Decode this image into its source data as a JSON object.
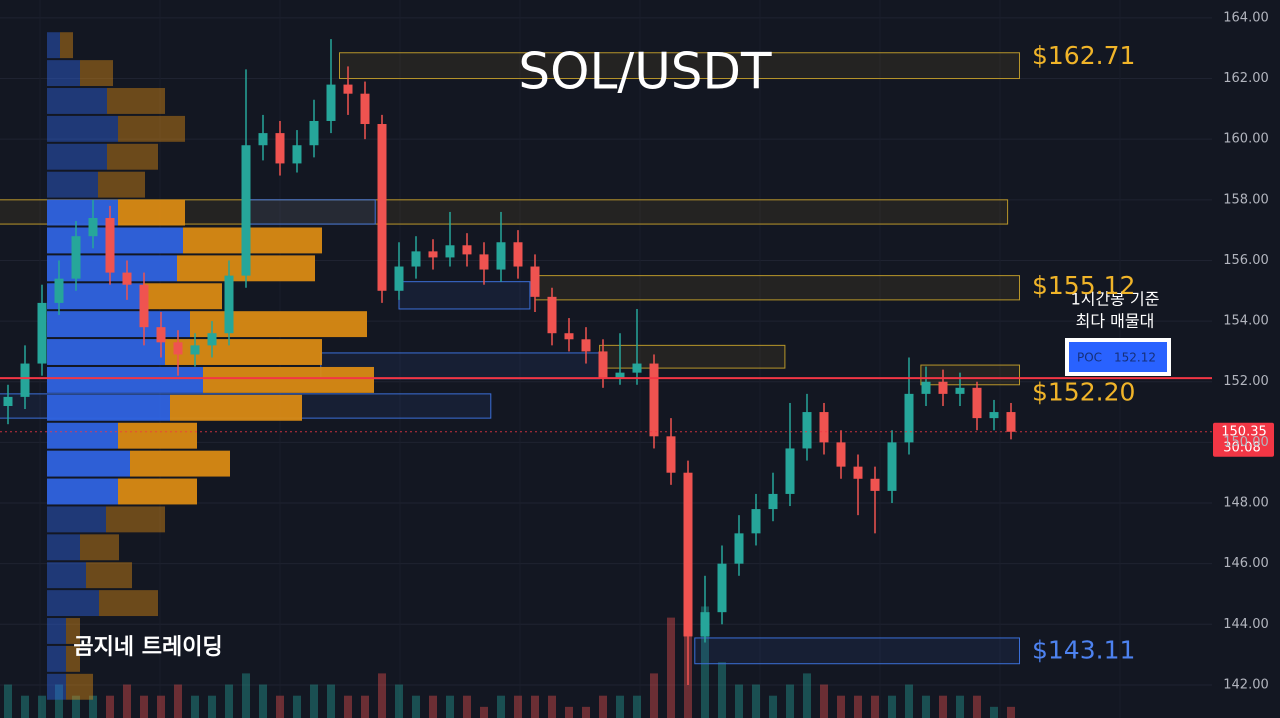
{
  "chart_data": {
    "type": "candlestick",
    "title": "SOL/USDT",
    "watermark": "곰지네 트레이딩",
    "ylim": [
      140.91,
      164.59
    ],
    "yticks": [
      {
        "value": 142,
        "label": "142.00"
      },
      {
        "value": 144,
        "label": "144.00"
      },
      {
        "value": 146,
        "label": "146.00"
      },
      {
        "value": 148,
        "label": "148.00"
      },
      {
        "value": 150,
        "label": "150.00"
      },
      {
        "value": 152,
        "label": "152.00"
      },
      {
        "value": 154,
        "label": "154.00"
      },
      {
        "value": 156,
        "label": "156.00"
      },
      {
        "value": 158,
        "label": "158.00"
      },
      {
        "value": 160,
        "label": "160.00"
      },
      {
        "value": 162,
        "label": "162.00"
      },
      {
        "value": 164,
        "label": "164.00"
      }
    ],
    "grid": true,
    "up_color": "#26a69a",
    "down_color": "#ef5350",
    "open": [
      151.2,
      151.5,
      152.6,
      154.6,
      155.4,
      156.8,
      157.4,
      155.6,
      155.2,
      153.8,
      153.3,
      152.9,
      153.2,
      153.6,
      155.5,
      159.8,
      160.2,
      159.2,
      159.8,
      160.6,
      161.8,
      161.5,
      160.5,
      155.0,
      155.8,
      156.3,
      156.1,
      156.5,
      156.2,
      155.7,
      156.6,
      155.8,
      154.8,
      153.6,
      153.4,
      153.0,
      152.1,
      152.3,
      152.6,
      150.2,
      149.0,
      143.6,
      144.4,
      146.0,
      147.0,
      147.8,
      148.3,
      149.8,
      151.0,
      150.0,
      149.2,
      148.8,
      148.4,
      150.0,
      151.6,
      152.0,
      151.6,
      151.8,
      150.8,
      151.0
    ],
    "high": [
      151.9,
      153.2,
      155.2,
      156.0,
      157.3,
      158.0,
      157.8,
      156.0,
      155.6,
      154.3,
      153.7,
      153.6,
      154.0,
      156.0,
      162.3,
      160.8,
      160.6,
      160.3,
      161.3,
      163.3,
      162.4,
      161.9,
      160.8,
      156.6,
      156.8,
      156.7,
      157.6,
      156.9,
      156.6,
      157.6,
      157.0,
      156.2,
      155.1,
      154.1,
      153.8,
      153.4,
      153.6,
      154.4,
      152.9,
      150.8,
      149.4,
      145.6,
      146.6,
      147.6,
      148.3,
      149.0,
      151.3,
      151.6,
      151.3,
      150.4,
      149.6,
      149.2,
      150.4,
      152.8,
      152.5,
      152.4,
      152.3,
      152.0,
      151.4,
      151.3
    ],
    "low": [
      150.6,
      151.1,
      152.2,
      154.2,
      155.0,
      156.4,
      155.2,
      154.7,
      153.2,
      152.8,
      152.2,
      152.5,
      152.8,
      153.2,
      155.1,
      159.3,
      158.8,
      158.9,
      159.4,
      160.2,
      160.8,
      160.0,
      154.6,
      154.7,
      155.4,
      155.7,
      155.8,
      155.8,
      155.2,
      155.3,
      155.4,
      154.3,
      153.2,
      153.0,
      152.6,
      151.8,
      151.9,
      151.9,
      149.8,
      148.6,
      142.0,
      143.4,
      144.0,
      145.6,
      146.6,
      147.4,
      147.9,
      149.4,
      149.6,
      148.8,
      147.6,
      147.0,
      148.0,
      149.6,
      151.2,
      151.2,
      151.2,
      150.4,
      150.4,
      150.1
    ],
    "close": [
      151.5,
      152.6,
      154.6,
      155.4,
      156.8,
      157.4,
      155.6,
      155.2,
      153.8,
      153.3,
      152.9,
      153.2,
      153.6,
      155.5,
      159.8,
      160.2,
      159.2,
      159.8,
      160.6,
      161.8,
      161.5,
      160.5,
      155.0,
      155.8,
      156.3,
      156.1,
      156.5,
      156.2,
      155.7,
      156.6,
      155.8,
      154.8,
      153.6,
      153.4,
      153.0,
      152.1,
      152.3,
      152.6,
      150.2,
      149.0,
      143.6,
      144.4,
      146.0,
      147.0,
      147.8,
      148.3,
      149.8,
      151.0,
      150.0,
      149.2,
      148.8,
      148.4,
      150.0,
      151.6,
      152.0,
      151.6,
      151.8,
      150.8,
      151.0,
      150.35
    ],
    "volume": [
      3,
      2,
      2,
      3,
      2,
      2,
      2,
      3,
      2,
      2,
      3,
      2,
      2,
      3,
      4,
      3,
      2,
      2,
      3,
      3,
      2,
      2,
      4,
      3,
      2,
      2,
      2,
      2,
      1,
      2,
      2,
      2,
      2,
      1,
      1,
      2,
      2,
      2,
      4,
      9,
      13,
      10,
      5,
      3,
      3,
      2,
      3,
      4,
      3,
      2,
      2,
      2,
      2,
      3,
      2,
      2,
      2,
      2,
      1,
      1
    ],
    "volume_profile": {
      "prices": [
        163.1,
        162.18,
        161.26,
        160.34,
        159.42,
        158.5,
        157.58,
        156.66,
        155.74,
        154.82,
        153.9,
        152.98,
        152.06,
        151.14,
        150.22,
        149.3,
        148.38,
        147.46,
        146.54,
        145.62,
        144.7,
        143.78,
        142.86,
        141.94
      ],
      "buy": [
        13,
        33,
        60,
        71,
        60,
        51,
        71,
        136,
        130,
        96,
        143,
        118,
        156,
        123,
        71,
        83,
        71,
        59,
        33,
        39,
        52,
        19,
        19,
        19
      ],
      "sell": [
        13,
        33,
        58,
        67,
        51,
        47,
        67,
        139,
        138,
        79,
        177,
        157,
        171,
        132,
        79,
        100,
        79,
        59,
        39,
        46,
        59,
        14,
        14,
        27
      ],
      "buy_color": "#2f63e0",
      "sell_color": "#d98a14",
      "value_area": [
        148.0,
        158.0
      ]
    },
    "zones": [
      {
        "top": 162.85,
        "bottom": 162.0,
        "from": 19.5,
        "to": 59.5,
        "color": "#b8962a",
        "label": "$162.71",
        "value": 162.71
      },
      {
        "top": 158.0,
        "bottom": 157.2,
        "from": -0.5,
        "to": 58.8,
        "color": "#b8962a"
      },
      {
        "top": 155.5,
        "bottom": 154.7,
        "from": 31,
        "to": 59.5,
        "color": "#b8962a",
        "label": "$155.12",
        "value": 155.12
      },
      {
        "top": 153.2,
        "bottom": 152.45,
        "from": 34.8,
        "to": 45.7,
        "color": "#b8962a"
      },
      {
        "top": 152.55,
        "bottom": 151.9,
        "from": 53.7,
        "to": 59.5,
        "color": "#b8962a",
        "label": "$152.20",
        "value": 152.2
      },
      {
        "top": 143.55,
        "bottom": 142.7,
        "from": 40.4,
        "to": 59.5,
        "color": "#3b6fd8",
        "label": "$143.11",
        "value": 143.11
      },
      {
        "top": 158.0,
        "bottom": 157.2,
        "from": 14,
        "to": 21.6,
        "color": "#3b6fd8"
      },
      {
        "top": 155.3,
        "bottom": 154.4,
        "from": 23,
        "to": 30.7,
        "color": "#3b6fd8"
      },
      {
        "top": 152.95,
        "bottom": 152.1,
        "from": 18.4,
        "to": 34.8,
        "color": "#3b6fd8"
      },
      {
        "top": 151.6,
        "bottom": 150.8,
        "from": -0.5,
        "to": 28.4,
        "color": "#3b6fd8"
      }
    ],
    "poc": {
      "label": "POC",
      "value": 152.12,
      "note": [
        "1시간봉 기준",
        "최다 매물대"
      ],
      "color": "#f23645"
    },
    "last_price": {
      "value": 150.35,
      "countdown": "30:08",
      "color": "#f23645"
    }
  }
}
